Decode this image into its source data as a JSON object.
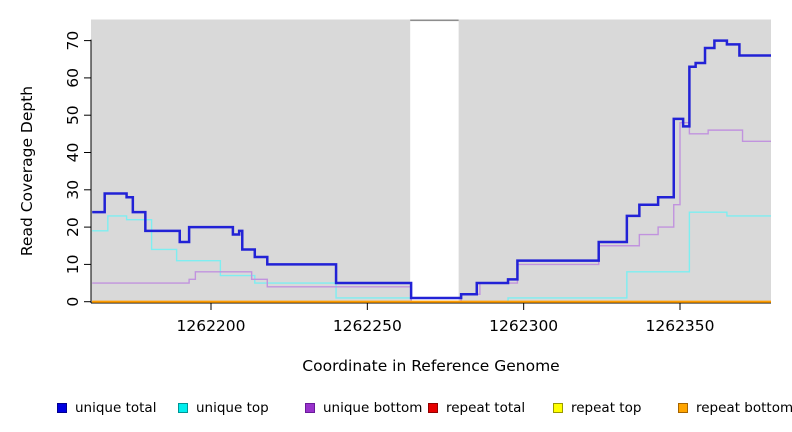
{
  "chart_data": {
    "type": "line",
    "step": true,
    "title": "",
    "xlabel": "Coordinate in Reference Genome",
    "ylabel": "Read Coverage Depth",
    "xlim": [
      1262162,
      1262379
    ],
    "ylim": [
      0,
      70
    ],
    "grid": false,
    "legend_position": "bottom",
    "panel_bg": "#d9d9d9",
    "gap_region": {
      "start": 1262263.7,
      "end": 1262279.2,
      "fill": "#ffffff",
      "cap_color": "#8d8d8d"
    },
    "x_ticks": [
      1262200,
      1262250,
      1262300,
      1262350
    ],
    "x_tick_labels": [
      "1262200",
      "1262250",
      "1262300",
      "1262350"
    ],
    "y_ticks": [
      0,
      10,
      20,
      30,
      40,
      50,
      60,
      70
    ],
    "y_tick_labels": [
      "0",
      "10",
      "20",
      "30",
      "40",
      "50",
      "60",
      "70"
    ],
    "axis_color": "#000000",
    "series": [
      {
        "name": "unique total",
        "line_color": "#2222d6",
        "swatch_color": "#0000e1",
        "swatch_edge": "#000090",
        "line_width": 2.5,
        "points": [
          [
            1262162,
            24
          ],
          [
            1262166,
            29
          ],
          [
            1262173,
            28
          ],
          [
            1262175,
            24
          ],
          [
            1262179,
            19
          ],
          [
            1262190,
            16
          ],
          [
            1262193,
            20
          ],
          [
            1262207,
            18
          ],
          [
            1262209,
            19
          ],
          [
            1262210,
            14
          ],
          [
            1262214,
            12
          ],
          [
            1262218,
            10
          ],
          [
            1262240,
            5
          ],
          [
            1262264,
            1
          ],
          [
            1262280,
            2
          ],
          [
            1262285,
            5
          ],
          [
            1262295,
            6
          ],
          [
            1262298,
            11
          ],
          [
            1262324,
            16
          ],
          [
            1262333,
            23
          ],
          [
            1262337,
            26
          ],
          [
            1262343,
            28
          ],
          [
            1262348,
            49
          ],
          [
            1262351,
            47
          ],
          [
            1262353,
            63
          ],
          [
            1262355,
            64
          ],
          [
            1262358,
            68
          ],
          [
            1262361,
            70
          ],
          [
            1262365,
            69
          ],
          [
            1262369,
            66
          ],
          [
            1262379,
            66
          ]
        ]
      },
      {
        "name": "unique top",
        "line_color": "#7deef1",
        "swatch_color": "#00eeee",
        "swatch_edge": "#009595",
        "line_width": 1.4,
        "points": [
          [
            1262162,
            19
          ],
          [
            1262167,
            23
          ],
          [
            1262173,
            22
          ],
          [
            1262181,
            14
          ],
          [
            1262189,
            11
          ],
          [
            1262203,
            7
          ],
          [
            1262214,
            5
          ],
          [
            1262240,
            1
          ],
          [
            1262264,
            0
          ],
          [
            1262295,
            1
          ],
          [
            1262333,
            8
          ],
          [
            1262353,
            24
          ],
          [
            1262365,
            23
          ],
          [
            1262379,
            23
          ]
        ]
      },
      {
        "name": "unique bottom",
        "line_color": "#c193de",
        "swatch_color": "#9932cc",
        "swatch_edge": "#6a1b9a",
        "line_width": 1.4,
        "points": [
          [
            1262162,
            5
          ],
          [
            1262193,
            6
          ],
          [
            1262195,
            8
          ],
          [
            1262213,
            6
          ],
          [
            1262218,
            4
          ],
          [
            1262264,
            0
          ],
          [
            1262280,
            2
          ],
          [
            1262286,
            5
          ],
          [
            1262298,
            10
          ],
          [
            1262324,
            15
          ],
          [
            1262337,
            18
          ],
          [
            1262343,
            20
          ],
          [
            1262348,
            26
          ],
          [
            1262350,
            48
          ],
          [
            1262353,
            45
          ],
          [
            1262359,
            46
          ],
          [
            1262370,
            43
          ],
          [
            1262379,
            43
          ]
        ]
      },
      {
        "name": "repeat total",
        "line_color": "#dd2222",
        "swatch_color": "#e60000",
        "swatch_edge": "#900000",
        "line_width": 1.2,
        "points": [
          [
            1262162,
            0
          ],
          [
            1262379,
            0
          ]
        ]
      },
      {
        "name": "repeat top",
        "line_color": "#ffff00",
        "swatch_color": "#ffff00",
        "swatch_edge": "#999900",
        "line_width": 1.2,
        "points": [
          [
            1262162,
            0
          ],
          [
            1262379,
            0
          ]
        ]
      },
      {
        "name": "repeat bottom",
        "line_color": "#ff9d00",
        "swatch_color": "#ffa500",
        "swatch_edge": "#a66400",
        "line_width": 2.2,
        "points": [
          [
            1262162,
            0
          ],
          [
            1262379,
            0
          ]
        ]
      }
    ]
  }
}
